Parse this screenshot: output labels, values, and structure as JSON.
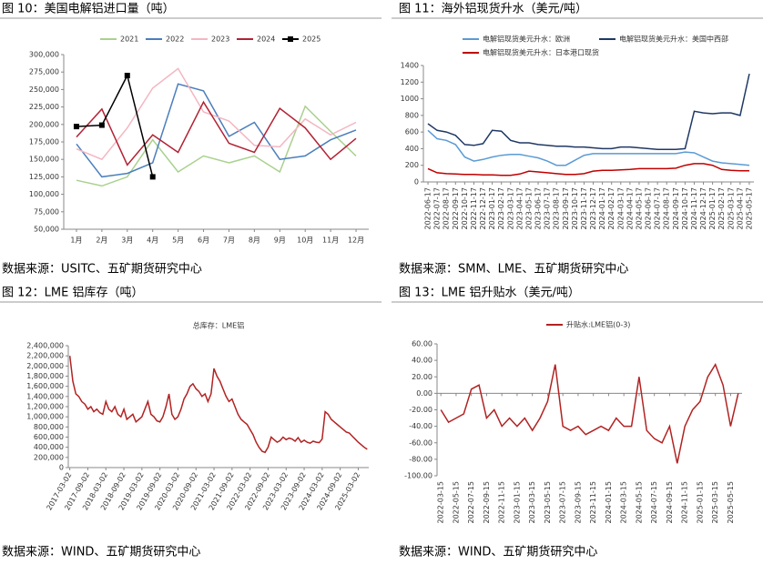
{
  "chart_data": [
    {
      "type": "line",
      "figure_title": "图 10：美国电解铝进口量（吨）",
      "source": "数据来源：USITC、五矿期货研究中心",
      "legend": "top",
      "categories": [
        "1月",
        "2月",
        "3月",
        "4月",
        "5月",
        "6月",
        "7月",
        "8月",
        "9月",
        "10月",
        "11月",
        "12月"
      ],
      "ylim": [
        50000,
        300000
      ],
      "yticks": [
        {
          "value": 50000,
          "label": "50,000"
        },
        {
          "value": 75000,
          "label": "75,000"
        },
        {
          "value": 100000,
          "label": "100,000"
        },
        {
          "value": 125000,
          "label": "125,000"
        },
        {
          "value": 150000,
          "label": "150,000"
        },
        {
          "value": 175000,
          "label": "175,000"
        },
        {
          "value": 200000,
          "label": "200,000"
        },
        {
          "value": 225000,
          "label": "225,000"
        },
        {
          "value": 250000,
          "label": "250,000"
        },
        {
          "value": 275000,
          "label": "275,000"
        },
        {
          "value": 300000,
          "label": "300,000"
        }
      ],
      "series": [
        {
          "name": "2021",
          "color": "#a9d18e",
          "values": [
            120000,
            112000,
            125000,
            178000,
            132000,
            155000,
            145000,
            155000,
            132000,
            226000,
            190000,
            155000
          ]
        },
        {
          "name": "2022",
          "color": "#4a7ebb",
          "values": [
            172000,
            125000,
            130000,
            145000,
            258000,
            248000,
            183000,
            203000,
            150000,
            155000,
            178000,
            192000
          ]
        },
        {
          "name": "2023",
          "color": "#f4b6c2",
          "values": [
            165000,
            150000,
            195000,
            252000,
            280000,
            218000,
            205000,
            170000,
            168000,
            208000,
            185000,
            203000
          ]
        },
        {
          "name": "2024",
          "color": "#b22234",
          "values": [
            182000,
            222000,
            142000,
            185000,
            160000,
            232000,
            173000,
            160000,
            223000,
            195000,
            150000,
            180000
          ]
        },
        {
          "name": "2025",
          "color": "#000000",
          "marker": "square",
          "values": [
            197000,
            199000,
            270000,
            125000,
            null,
            null,
            null,
            null,
            null,
            null,
            null,
            null
          ]
        }
      ]
    },
    {
      "type": "line",
      "figure_title": "图 11：海外铝现货升水（美元/吨）",
      "source": "数据来源：SMM、LME、五矿期货研究中心",
      "legend": "top",
      "categories": [
        "2022-06-17",
        "2022-07-17",
        "2022-08-17",
        "2022-09-17",
        "2022-10-17",
        "2022-11-17",
        "2022-12-17",
        "2023-01-17",
        "2023-02-17",
        "2023-03-17",
        "2023-04-17",
        "2023-05-17",
        "2023-06-17",
        "2023-07-17",
        "2023-08-17",
        "2023-09-17",
        "2023-10-17",
        "2023-11-17",
        "2023-12-17",
        "2024-01-17",
        "2024-02-17",
        "2024-03-17",
        "2024-04-17",
        "2024-05-17",
        "2024-06-17",
        "2024-07-17",
        "2024-08-17",
        "2024-09-17",
        "2024-10-17",
        "2024-11-17",
        "2024-12-17",
        "2025-01-17",
        "2025-02-17",
        "2025-03-17",
        "2025-04-17",
        "2025-05-17"
      ],
      "ylim": [
        0,
        1400
      ],
      "yticks": [
        0,
        200,
        400,
        600,
        800,
        1000,
        1200,
        1400
      ],
      "series": [
        {
          "name": "电解铝现货美元升水：欧洲",
          "color": "#5b9bd5",
          "values": [
            620,
            520,
            500,
            450,
            300,
            250,
            270,
            300,
            320,
            330,
            330,
            310,
            290,
            250,
            200,
            200,
            260,
            320,
            340,
            340,
            340,
            340,
            340,
            340,
            340,
            340,
            340,
            340,
            360,
            350,
            300,
            250,
            230,
            220,
            210,
            200
          ]
        },
        {
          "name": "电解铝现货美元升水：美国中西部",
          "color": "#1f3864",
          "values": [
            700,
            620,
            600,
            560,
            450,
            440,
            460,
            620,
            610,
            500,
            470,
            470,
            450,
            440,
            430,
            430,
            420,
            420,
            410,
            400,
            400,
            420,
            420,
            410,
            400,
            390,
            390,
            390,
            400,
            850,
            830,
            820,
            830,
            830,
            800,
            1300
          ]
        },
        {
          "name": "电解铝现货美元升水：日本港口现货",
          "color": "#c00000",
          "values": [
            160,
            110,
            100,
            95,
            90,
            90,
            85,
            85,
            80,
            80,
            95,
            130,
            120,
            110,
            100,
            90,
            90,
            100,
            130,
            140,
            140,
            145,
            150,
            160,
            160,
            160,
            160,
            165,
            200,
            220,
            220,
            200,
            150,
            140,
            135,
            135
          ]
        }
      ]
    },
    {
      "type": "line",
      "figure_title": "图 12：LME 铝库存（吨）",
      "source": "数据来源：WIND、五矿期货研究中心",
      "title": "总库存：LME铝",
      "categories": [
        "2017-03-02",
        null,
        null,
        null,
        null,
        null,
        "2017-09-02",
        null,
        null,
        null,
        null,
        null,
        "2018-03-02",
        null,
        null,
        null,
        null,
        null,
        "2018-09-02",
        null,
        null,
        null,
        null,
        null,
        "2019-03-02",
        null,
        null,
        null,
        null,
        null,
        "2019-09-02",
        null,
        null,
        null,
        null,
        null,
        "2020-03-02",
        null,
        null,
        null,
        null,
        null,
        "2020-09-02",
        null,
        null,
        null,
        null,
        null,
        "2021-03-02",
        null,
        null,
        null,
        null,
        null,
        "2021-09-02",
        null,
        null,
        null,
        null,
        null,
        "2022-03-02",
        null,
        null,
        null,
        null,
        null,
        "2022-09-02",
        null,
        null,
        null,
        null,
        null,
        "2023-03-02",
        null,
        null,
        null,
        null,
        null,
        "2023-09-02",
        null,
        null,
        null,
        null,
        null,
        "2024-03-02",
        null,
        null,
        null,
        null,
        null,
        "2024-09-02",
        null,
        null,
        null,
        null,
        null,
        "2025-03-02",
        null,
        null,
        null
      ],
      "ylim": [
        0,
        2400000
      ],
      "yticks": [
        0,
        {
          "value": 200000,
          "label": "200,000"
        },
        {
          "value": 400000,
          "label": "400,000"
        },
        {
          "value": 600000,
          "label": "600,000"
        },
        {
          "value": 800000,
          "label": "800,000"
        },
        {
          "value": 1000000,
          "label": "1,000,000"
        },
        {
          "value": 1200000,
          "label": "1,200,000"
        },
        {
          "value": 1400000,
          "label": "1,400,000"
        },
        {
          "value": 1600000,
          "label": "1,600,000"
        },
        {
          "value": 1800000,
          "label": "1,800,000"
        },
        {
          "value": 2000000,
          "label": "2,000,000"
        },
        {
          "value": 2200000,
          "label": "2,200,000"
        },
        {
          "value": 2400000,
          "label": "2,400,000"
        }
      ],
      "series": [
        {
          "name": "总库存：LME铝",
          "color": "#b22222",
          "values": [
            2200000,
            1700000,
            1450000,
            1400000,
            1300000,
            1250000,
            1150000,
            1200000,
            1100000,
            1150000,
            1080000,
            1050000,
            1300000,
            1150000,
            1100000,
            1200000,
            1050000,
            1000000,
            1150000,
            950000,
            1000000,
            1050000,
            900000,
            950000,
            1000000,
            1150000,
            1300000,
            1050000,
            1000000,
            920000,
            900000,
            1000000,
            1200000,
            1450000,
            1050000,
            950000,
            1000000,
            1150000,
            1350000,
            1450000,
            1600000,
            1650000,
            1550000,
            1500000,
            1400000,
            1450000,
            1300000,
            1450000,
            1950000,
            1800000,
            1700000,
            1550000,
            1400000,
            1300000,
            1350000,
            1200000,
            1050000,
            950000,
            900000,
            850000,
            750000,
            650000,
            500000,
            400000,
            320000,
            300000,
            400000,
            600000,
            550000,
            500000,
            530000,
            600000,
            550000,
            580000,
            560000,
            520000,
            590000,
            500000,
            540000,
            500000,
            480000,
            520000,
            500000,
            490000,
            560000,
            1100000,
            1050000,
            950000,
            900000,
            850000,
            800000,
            750000,
            700000,
            680000,
            620000,
            560000,
            500000,
            450000,
            400000,
            360000
          ]
        }
      ]
    },
    {
      "type": "line",
      "figure_title": "图 13：LME 铝升贴水（美元/吨）",
      "source": "数据来源：WIND、五矿期货研究中心",
      "legend": "top",
      "categories": [
        "2022-03-15",
        null,
        "2022-05-15",
        null,
        "2022-07-15",
        null,
        "2022-09-15",
        null,
        "2022-11-15",
        null,
        "2023-01-15",
        null,
        "2023-03-15",
        null,
        "2023-05-15",
        null,
        "2023-07-15",
        null,
        "2023-09-15",
        null,
        "2023-11-15",
        null,
        "2024-01-15",
        null,
        "2024-03-15",
        null,
        "2024-05-15",
        null,
        "2024-07-15",
        null,
        "2024-09-15",
        null,
        "2024-11-15",
        null,
        "2025-01-15",
        null,
        "2025-03-15",
        null,
        "2025-05-15",
        null
      ],
      "ylim": [
        -100,
        60
      ],
      "yticks": [
        {
          "value": 60,
          "label": "60.00"
        },
        {
          "value": 40,
          "label": "40.00"
        },
        {
          "value": 20,
          "label": "20.00"
        },
        {
          "value": 0,
          "label": "0.00"
        },
        {
          "value": -20,
          "label": "-20.00"
        },
        {
          "value": -40,
          "label": "-40.00"
        },
        {
          "value": -60,
          "label": "-60.00"
        },
        {
          "value": -80,
          "label": "-80.00"
        },
        {
          "value": -100,
          "label": "-100.00"
        }
      ],
      "series": [
        {
          "name": "升贴水:LME铝(0-3)",
          "color": "#b22222",
          "values": [
            -20,
            -35,
            -30,
            -25,
            5,
            10,
            -30,
            -20,
            -40,
            -30,
            -40,
            -30,
            -45,
            -30,
            -10,
            35,
            -40,
            -45,
            -40,
            -50,
            -45,
            -40,
            -45,
            -30,
            -40,
            -40,
            20,
            -45,
            -55,
            -60,
            -40,
            -85,
            -40,
            -20,
            -10,
            20,
            35,
            10,
            -40,
            0
          ]
        }
      ]
    }
  ]
}
